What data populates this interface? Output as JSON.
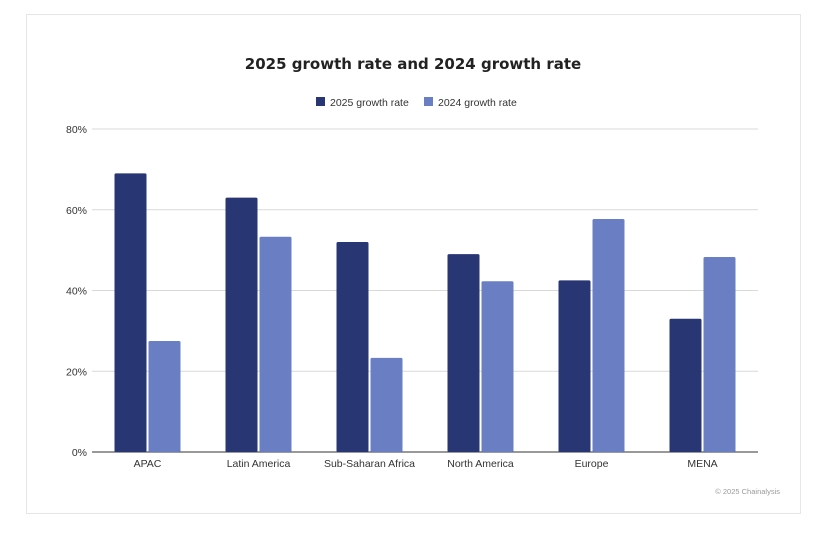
{
  "chart_data": {
    "type": "bar",
    "title": "2025 growth rate and 2024 growth rate",
    "categories": [
      "APAC",
      "Latin America",
      "Sub-Saharan Africa",
      "North America",
      "Europe",
      "MENA"
    ],
    "series": [
      {
        "name": "2025 growth rate",
        "color": "#283673",
        "values": [
          69,
          63,
          52,
          49,
          42.5,
          33
        ]
      },
      {
        "name": "2024 growth rate",
        "color": "#6a7fc3",
        "values": [
          27.5,
          53.3,
          23.3,
          42.3,
          57.7,
          48.3
        ]
      }
    ],
    "y_ticks": [
      "0%",
      "20%",
      "40%",
      "60%",
      "80%"
    ],
    "ylim": [
      0,
      80
    ],
    "legend_position": "top-center",
    "grid": true,
    "credit": "© 2025 Chainalysis"
  }
}
